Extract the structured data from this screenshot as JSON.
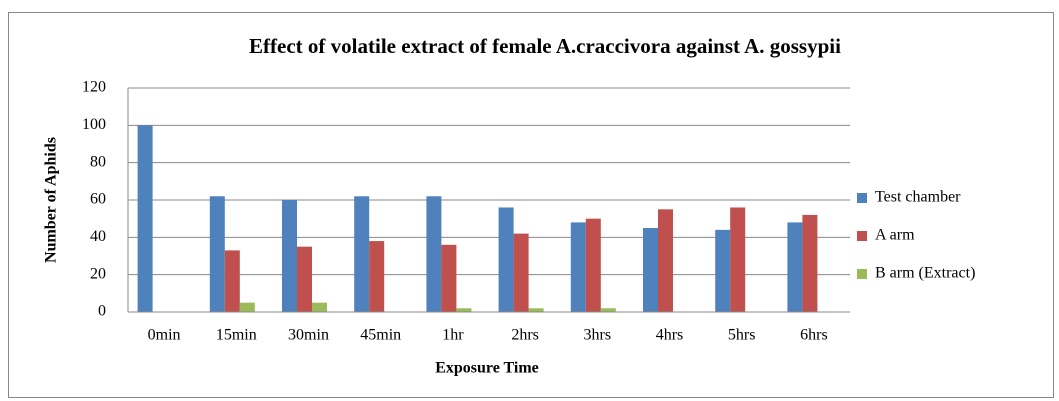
{
  "chart_data": {
    "type": "bar",
    "title": "Effect of volatile extract of female A.craccivora against A. gossypii",
    "x_label": "Exposure Time",
    "y_label": "Number of Aphids",
    "categories": [
      "0min",
      "15min",
      "30min",
      "45min",
      "1hr",
      "2hrs",
      "3hrs",
      "4hrs",
      "5hrs",
      "6hrs"
    ],
    "series": [
      {
        "name": "Test chamber",
        "color": "#4f81bd",
        "values": [
          100,
          62,
          60,
          62,
          62,
          56,
          48,
          45,
          44,
          48
        ]
      },
      {
        "name": "A arm",
        "color": "#c0504d",
        "values": [
          0,
          33,
          35,
          38,
          36,
          42,
          50,
          55,
          56,
          52
        ]
      },
      {
        "name": "B arm (Extract)",
        "color": "#9bbb59",
        "values": [
          0,
          5,
          5,
          0,
          2,
          2,
          2,
          0,
          0,
          0
        ]
      }
    ],
    "ylim": [
      0,
      120
    ],
    "yticks": [
      0,
      20,
      40,
      60,
      80,
      100,
      120
    ],
    "grid": true,
    "legend": "right"
  }
}
